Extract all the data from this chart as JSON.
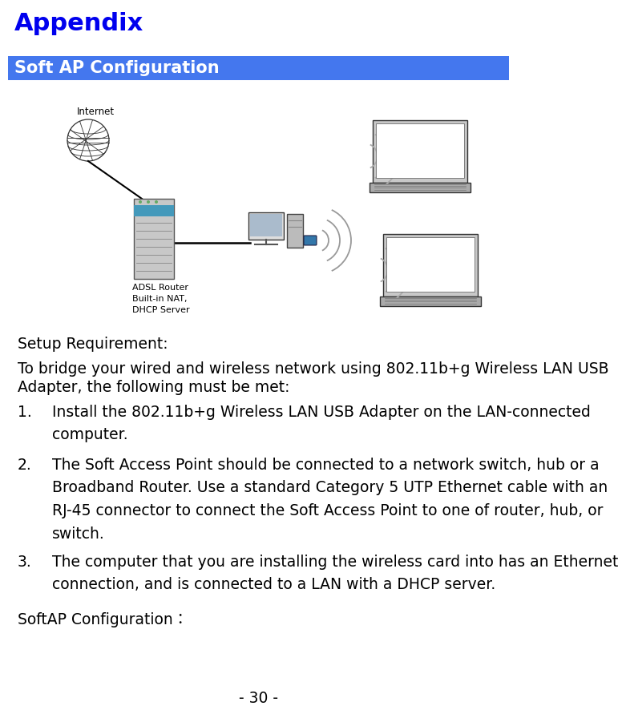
{
  "title": "Appendix",
  "title_color": "#0000EE",
  "title_fontsize": 22,
  "title_bold": true,
  "section_bg_color": "#4477EE",
  "section_text": "Soft AP Configuration",
  "section_text_color": "#FFFFFF",
  "section_fontsize": 15,
  "section_bold": true,
  "body_fontsize": 13.5,
  "body_color": "#000000",
  "page_bg": "#FFFFFF",
  "setup_req": "Setup Requirement:",
  "intro_line1": "To bridge your wired and wireless network using 802.11b+g Wireless LAN USB",
  "intro_line2": "Adapter, the following must be met:",
  "items": [
    {
      "num": "1.",
      "line1": "Install the 802.11b+g Wireless LAN USB Adapter on the LAN-connected",
      "line2": "computer."
    },
    {
      "num": "2.",
      "line1": "The Soft Access Point should be connected to a network switch, hub or a",
      "line2": "Broadband Router. Use a standard Category 5 UTP Ethernet cable with an",
      "line3": "RJ-45 connector to connect the Soft Access Point to one of router, hub, or",
      "line4": "switch."
    },
    {
      "num": "3.",
      "line1": "The computer that you are installing the wireless card into has an Ethernet",
      "line2": "connection, and is connected to a LAN with a DHCP server."
    }
  ],
  "footer_line": "SoftAP Configuration：",
  "page_number": "- 30 -",
  "diagram_label_internet": "Internet",
  "diagram_label_adsl": "ADSL Router\nBuilt-in NAT,\nDHCP Server"
}
